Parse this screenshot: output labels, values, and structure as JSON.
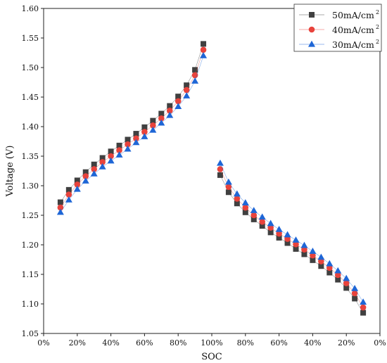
{
  "chart_data": {
    "type": "scatter",
    "title": "",
    "xlabel": "SOC",
    "ylabel": "Voltage (V)",
    "ylim": [
      1.05,
      1.6
    ],
    "y_ticks": [
      "1.05",
      "1.10",
      "1.15",
      "1.20",
      "1.25",
      "1.30",
      "1.35",
      "1.40",
      "1.45",
      "1.50",
      "1.55",
      "1.60"
    ],
    "x_tick_labels": [
      "0%",
      "20%",
      "40%",
      "60%",
      "80%",
      "100%",
      "80%",
      "60%",
      "40%",
      "20%",
      "0%"
    ],
    "x_axis_note": "charging 0%→100%, then discharging 100%→0%",
    "legend_position": "top-right",
    "charge_soc": [
      10,
      15,
      20,
      25,
      30,
      35,
      40,
      45,
      50,
      55,
      60,
      65,
      70,
      75,
      80,
      85,
      90,
      95
    ],
    "discharge_soc": [
      95,
      90,
      85,
      80,
      75,
      70,
      65,
      60,
      55,
      50,
      45,
      40,
      35,
      30,
      25,
      20,
      15,
      10
    ],
    "series": [
      {
        "name": "50mA/cm",
        "name_sup": "2",
        "color": "#404040",
        "marker": "square",
        "charge": [
          1.272,
          1.293,
          1.309,
          1.323,
          1.336,
          1.347,
          1.358,
          1.368,
          1.378,
          1.388,
          1.399,
          1.41,
          1.422,
          1.435,
          1.451,
          1.47,
          1.496,
          1.54
        ],
        "discharge": [
          1.318,
          1.289,
          1.27,
          1.255,
          1.243,
          1.232,
          1.221,
          1.212,
          1.203,
          1.193,
          1.184,
          1.174,
          1.164,
          1.153,
          1.141,
          1.127,
          1.109,
          1.085
        ]
      },
      {
        "name": "40mA/cm",
        "name_sup": "2",
        "color": "#e8433c",
        "marker": "circle",
        "charge": [
          1.263,
          1.285,
          1.302,
          1.316,
          1.328,
          1.34,
          1.35,
          1.36,
          1.37,
          1.38,
          1.391,
          1.402,
          1.414,
          1.427,
          1.443,
          1.462,
          1.487,
          1.53
        ],
        "discharge": [
          1.328,
          1.298,
          1.278,
          1.263,
          1.25,
          1.239,
          1.229,
          1.219,
          1.21,
          1.201,
          1.192,
          1.182,
          1.172,
          1.161,
          1.149,
          1.135,
          1.118,
          1.094
        ]
      },
      {
        "name": "30mA/cm",
        "name_sup": "2",
        "color": "#1e66d6",
        "marker": "triangle",
        "charge": [
          1.255,
          1.276,
          1.294,
          1.308,
          1.32,
          1.332,
          1.342,
          1.352,
          1.362,
          1.373,
          1.383,
          1.394,
          1.406,
          1.419,
          1.434,
          1.452,
          1.477,
          1.52
        ],
        "discharge": [
          1.338,
          1.306,
          1.286,
          1.271,
          1.258,
          1.247,
          1.236,
          1.226,
          1.217,
          1.208,
          1.199,
          1.189,
          1.179,
          1.168,
          1.156,
          1.143,
          1.126,
          1.103
        ]
      }
    ]
  }
}
